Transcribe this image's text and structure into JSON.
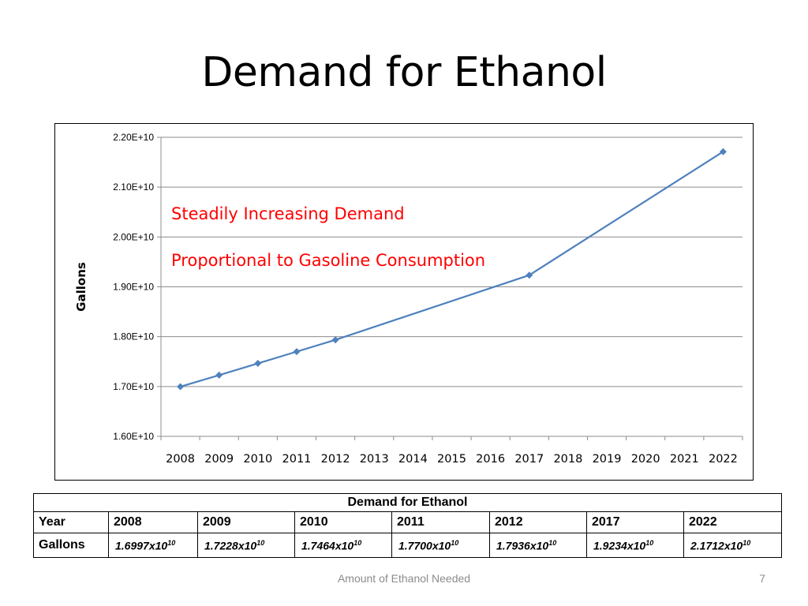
{
  "slide": {
    "title": "Demand for Ethanol",
    "footer": "Amount of Ethanol Needed",
    "page_number": "7"
  },
  "chart_data": {
    "type": "line",
    "title": "",
    "xlabel": "",
    "ylabel": "Gallons",
    "x_categories": [
      "2008",
      "2009",
      "2010",
      "2011",
      "2012",
      "2013",
      "2014",
      "2015",
      "2016",
      "2017",
      "2018",
      "2019",
      "2020",
      "2021",
      "2022"
    ],
    "y_ticks": [
      "1.60E+10",
      "1.70E+10",
      "1.80E+10",
      "1.90E+10",
      "2.00E+10",
      "2.10E+10",
      "2.20E+10"
    ],
    "ylim": [
      16000000000.0,
      22000000000.0
    ],
    "grid": true,
    "line_color": "#4f81bd",
    "annotation_color": "#ff0000",
    "annotations": [
      "Steadily Increasing Demand",
      "Proportional to Gasoline Consumption"
    ],
    "series": [
      {
        "x": [
          "2008",
          "2009",
          "2010",
          "2011",
          "2012",
          "2017",
          "2022"
        ],
        "values": [
          16997000000.0,
          17228000000.0,
          17464000000.0,
          17700000000.0,
          17936000000.0,
          19234000000.0,
          21712000000.0
        ]
      }
    ]
  },
  "table": {
    "caption": "Demand for Ethanol",
    "year_label": "Year",
    "gallons_label": "Gallons",
    "years": [
      "2008",
      "2009",
      "2010",
      "2011",
      "2012",
      "2017",
      "2022"
    ],
    "gallons": [
      {
        "mantissa": "1.6997x10",
        "exp": "10"
      },
      {
        "mantissa": "1.7228x10",
        "exp": "10"
      },
      {
        "mantissa": "1.7464x10",
        "exp": "10"
      },
      {
        "mantissa": "1.7700x10",
        "exp": "10"
      },
      {
        "mantissa": "1.7936x10",
        "exp": "10"
      },
      {
        "mantissa": "1.9234x10",
        "exp": "10"
      },
      {
        "mantissa": "2.1712x10",
        "exp": "10"
      }
    ]
  }
}
